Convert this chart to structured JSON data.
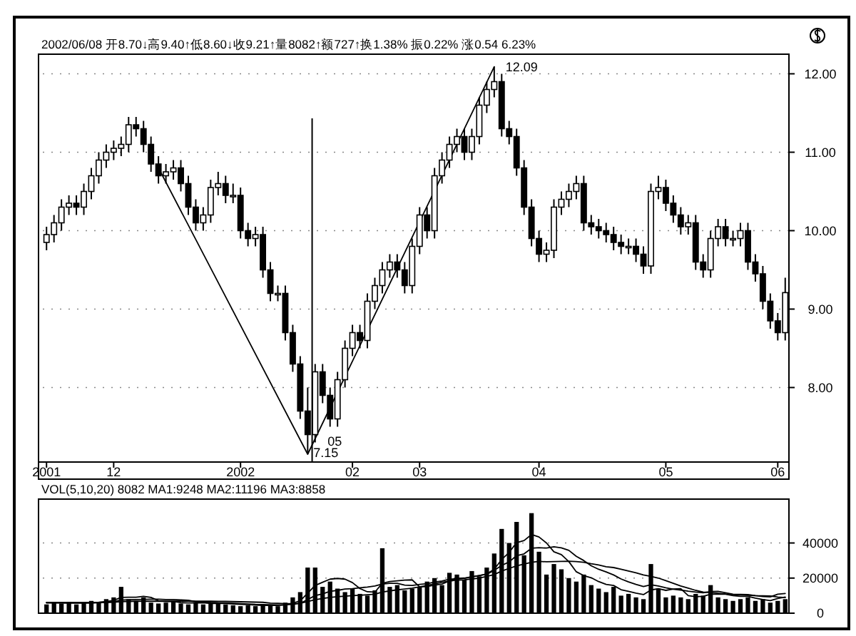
{
  "chart_data": [
    {
      "type": "candlestick",
      "subtitle": "2002/06/08 开8.70↓高9.40↑低8.60↓收9.21↑量8082↑额727↑换1.38% 振0.22% 涨0.54 6.23%",
      "categories": [
        "2001",
        null,
        null,
        null,
        null,
        null,
        null,
        null,
        null,
        "12",
        null,
        null,
        null,
        null,
        null,
        null,
        null,
        null,
        null,
        null,
        null,
        null,
        null,
        null,
        null,
        null,
        "2002",
        null,
        null,
        null,
        null,
        null,
        null,
        null,
        null,
        null,
        null,
        null,
        null,
        null,
        null,
        "02",
        null,
        null,
        null,
        null,
        null,
        null,
        null,
        null,
        "03",
        null,
        null,
        null,
        null,
        null,
        null,
        null,
        null,
        null,
        null,
        null,
        null,
        null,
        null,
        null,
        "04",
        null,
        null,
        null,
        null,
        null,
        null,
        null,
        null,
        null,
        null,
        null,
        null,
        null,
        null,
        null,
        null,
        "05",
        null,
        null,
        null,
        null,
        null,
        null,
        null,
        null,
        null,
        null,
        null,
        null,
        null,
        null,
        "06",
        null
      ],
      "ohlc": [
        [
          9.85,
          10.05,
          9.75,
          9.95
        ],
        [
          9.95,
          10.2,
          9.85,
          10.1
        ],
        [
          10.1,
          10.4,
          10.0,
          10.3
        ],
        [
          10.3,
          10.45,
          10.2,
          10.35
        ],
        [
          10.35,
          10.45,
          10.2,
          10.3
        ],
        [
          10.3,
          10.6,
          10.2,
          10.5
        ],
        [
          10.5,
          10.8,
          10.4,
          10.7
        ],
        [
          10.7,
          11.0,
          10.6,
          10.9
        ],
        [
          10.9,
          11.1,
          10.8,
          11.0
        ],
        [
          11.0,
          11.15,
          10.9,
          11.05
        ],
        [
          11.05,
          11.2,
          10.95,
          11.1
        ],
        [
          11.1,
          11.45,
          11.0,
          11.35
        ],
        [
          11.35,
          11.45,
          11.2,
          11.3
        ],
        [
          11.3,
          11.4,
          11.0,
          11.1
        ],
        [
          11.1,
          11.2,
          10.75,
          10.85
        ],
        [
          10.85,
          10.95,
          10.6,
          10.7
        ],
        [
          10.7,
          10.85,
          10.6,
          10.75
        ],
        [
          10.75,
          10.9,
          10.65,
          10.8
        ],
        [
          10.8,
          10.9,
          10.5,
          10.6
        ],
        [
          10.6,
          10.7,
          10.2,
          10.3
        ],
        [
          10.3,
          10.4,
          10.0,
          10.1
        ],
        [
          10.1,
          10.3,
          10.0,
          10.2
        ],
        [
          10.2,
          10.65,
          10.1,
          10.55
        ],
        [
          10.55,
          10.75,
          10.45,
          10.6
        ],
        [
          10.6,
          10.7,
          10.35,
          10.45
        ],
        [
          10.45,
          10.6,
          10.35,
          10.45
        ],
        [
          10.45,
          10.55,
          9.9,
          10.0
        ],
        [
          10.0,
          10.1,
          9.8,
          9.9
        ],
        [
          9.9,
          10.05,
          9.8,
          9.95
        ],
        [
          9.95,
          10.05,
          9.4,
          9.5
        ],
        [
          9.5,
          9.6,
          9.1,
          9.2
        ],
        [
          9.2,
          9.3,
          9.1,
          9.2
        ],
        [
          9.2,
          9.3,
          8.6,
          8.7
        ],
        [
          8.7,
          8.8,
          8.2,
          8.3
        ],
        [
          8.3,
          8.4,
          7.6,
          7.7
        ],
        [
          7.7,
          8.0,
          7.15,
          7.4
        ],
        [
          7.4,
          8.3,
          7.3,
          8.2
        ],
        [
          8.2,
          8.3,
          7.8,
          7.9
        ],
        [
          7.9,
          8.0,
          7.5,
          7.6
        ],
        [
          7.6,
          8.2,
          7.5,
          8.1
        ],
        [
          8.1,
          8.6,
          8.0,
          8.5
        ],
        [
          8.5,
          8.8,
          8.4,
          8.7
        ],
        [
          8.7,
          8.8,
          8.5,
          8.6
        ],
        [
          8.6,
          9.2,
          8.5,
          9.1
        ],
        [
          9.1,
          9.4,
          9.0,
          9.3
        ],
        [
          9.3,
          9.6,
          9.2,
          9.5
        ],
        [
          9.5,
          9.7,
          9.4,
          9.6
        ],
        [
          9.6,
          9.7,
          9.4,
          9.5
        ],
        [
          9.5,
          9.6,
          9.2,
          9.3
        ],
        [
          9.3,
          9.9,
          9.2,
          9.8
        ],
        [
          9.8,
          10.3,
          9.7,
          10.2
        ],
        [
          10.2,
          10.3,
          9.9,
          10.0
        ],
        [
          10.0,
          10.8,
          9.9,
          10.7
        ],
        [
          10.7,
          11.0,
          10.6,
          10.9
        ],
        [
          10.9,
          11.2,
          10.8,
          11.1
        ],
        [
          11.1,
          11.3,
          11.0,
          11.2
        ],
        [
          11.2,
          11.3,
          10.9,
          11.0
        ],
        [
          11.0,
          11.3,
          10.9,
          11.2
        ],
        [
          11.2,
          11.7,
          11.1,
          11.6
        ],
        [
          11.6,
          11.9,
          11.5,
          11.8
        ],
        [
          11.8,
          12.09,
          11.7,
          11.9
        ],
        [
          11.9,
          12.0,
          11.2,
          11.3
        ],
        [
          11.3,
          11.4,
          11.1,
          11.2
        ],
        [
          11.2,
          11.3,
          10.7,
          10.8
        ],
        [
          10.8,
          10.9,
          10.2,
          10.3
        ],
        [
          10.3,
          10.4,
          9.8,
          9.9
        ],
        [
          9.9,
          10.0,
          9.6,
          9.7
        ],
        [
          9.7,
          9.85,
          9.6,
          9.75
        ],
        [
          9.75,
          10.4,
          9.65,
          10.3
        ],
        [
          10.3,
          10.5,
          10.2,
          10.4
        ],
        [
          10.4,
          10.6,
          10.3,
          10.5
        ],
        [
          10.5,
          10.7,
          10.4,
          10.6
        ],
        [
          10.6,
          10.7,
          10.0,
          10.1
        ],
        [
          10.1,
          10.2,
          9.95,
          10.05
        ],
        [
          10.05,
          10.15,
          9.9,
          10.0
        ],
        [
          10.0,
          10.1,
          9.85,
          9.95
        ],
        [
          9.95,
          10.05,
          9.75,
          9.85
        ],
        [
          9.85,
          9.95,
          9.7,
          9.8
        ],
        [
          9.8,
          9.9,
          9.7,
          9.8
        ],
        [
          9.8,
          9.9,
          9.6,
          9.7
        ],
        [
          9.7,
          9.8,
          9.45,
          9.55
        ],
        [
          9.55,
          10.6,
          9.45,
          10.5
        ],
        [
          10.5,
          10.7,
          10.4,
          10.55
        ],
        [
          10.55,
          10.65,
          10.25,
          10.35
        ],
        [
          10.35,
          10.45,
          10.1,
          10.2
        ],
        [
          10.2,
          10.3,
          9.95,
          10.05
        ],
        [
          10.05,
          10.2,
          9.95,
          10.1
        ],
        [
          10.1,
          10.2,
          9.5,
          9.6
        ],
        [
          9.6,
          9.7,
          9.4,
          9.5
        ],
        [
          9.5,
          10.0,
          9.4,
          9.9
        ],
        [
          9.9,
          10.15,
          9.8,
          10.05
        ],
        [
          10.05,
          10.15,
          9.8,
          9.9
        ],
        [
          9.9,
          10.0,
          9.8,
          9.9
        ],
        [
          9.9,
          10.1,
          9.8,
          10.0
        ],
        [
          10.0,
          10.1,
          9.5,
          9.6
        ],
        [
          9.6,
          9.7,
          9.35,
          9.45
        ],
        [
          9.45,
          9.55,
          9.0,
          9.1
        ],
        [
          9.1,
          9.2,
          8.75,
          8.85
        ],
        [
          8.85,
          8.95,
          8.6,
          8.7
        ],
        [
          8.7,
          9.4,
          8.6,
          9.21
        ]
      ],
      "color": "#000000",
      "series": [
        {
          "type": "line",
          "color": "#000000",
          "values": [
            null,
            null,
            null,
            null,
            null,
            null,
            null,
            null,
            null,
            null,
            null,
            null,
            null,
            null,
            null,
            10.8,
            null,
            null,
            null,
            null,
            null,
            null,
            null,
            null,
            null,
            null,
            null,
            null,
            null,
            null,
            null,
            null,
            null,
            null,
            null,
            7.15,
            null,
            null,
            null,
            null,
            null,
            null,
            null,
            null,
            null,
            null,
            null,
            null,
            null,
            null,
            null,
            null,
            null,
            null,
            null,
            null,
            null,
            null,
            null,
            null,
            12.09,
            null,
            null,
            null,
            null,
            null,
            null,
            null,
            null,
            null,
            null,
            null,
            null,
            null,
            null,
            null,
            null,
            null,
            null,
            null,
            null,
            null,
            null,
            null,
            null,
            null,
            null,
            null,
            null,
            null,
            null,
            null,
            null,
            null,
            null,
            null,
            null,
            null,
            null,
            null
          ]
        }
      ],
      "ylim": [
        7.05,
        12.25
      ],
      "yticks": [
        {
          "value": 8,
          "label": "8.00"
        },
        {
          "value": 9,
          "label": "9.00"
        },
        {
          "value": 10,
          "label": "10.00"
        },
        {
          "value": 11,
          "label": "11.00"
        },
        {
          "value": 12,
          "label": "12.00"
        }
      ],
      "annotations": [
        "12.09",
        "7.15",
        "05"
      ],
      "grid": "y"
    },
    {
      "type": "bar",
      "subtitle": "VOL(5,10,20) 8082 MA1:9248 MA2:11196 MA3:8858",
      "categories": [
        null,
        null,
        null,
        null,
        null,
        null,
        null,
        null,
        null,
        null,
        null,
        null,
        null,
        null,
        null,
        null,
        null,
        null,
        null,
        null,
        null,
        null,
        null,
        null,
        null,
        null,
        null,
        null,
        null,
        null,
        null,
        null,
        null,
        null,
        null,
        null,
        null,
        null,
        null,
        null,
        null,
        null,
        null,
        null,
        null,
        null,
        null,
        null,
        null,
        null,
        null,
        null,
        null,
        null,
        null,
        null,
        null,
        null,
        null,
        null,
        null,
        null,
        null,
        null,
        null,
        null,
        null,
        null,
        null,
        null,
        null,
        null,
        null,
        null,
        null,
        null,
        null,
        null,
        null,
        null,
        null,
        null,
        null,
        null,
        null,
        null,
        null,
        null,
        null,
        null,
        null,
        null,
        null,
        null,
        null,
        null,
        null,
        null,
        null,
        null
      ],
      "series": [
        {
          "type": "bar",
          "color": "#000000",
          "values": [
            5000,
            6000,
            5500,
            6500,
            5000,
            6000,
            7000,
            6500,
            8000,
            9000,
            15000,
            8000,
            7000,
            9000,
            6000,
            5500,
            6000,
            7000,
            5500,
            5000,
            6000,
            5000,
            5500,
            6000,
            5000,
            4500,
            4000,
            4500,
            4000,
            5000,
            4500,
            4000,
            6000,
            9000,
            12000,
            26000,
            26000,
            15000,
            18000,
            14000,
            12000,
            14000,
            11000,
            10000,
            13000,
            37000,
            15000,
            16000,
            13000,
            14000,
            15000,
            18000,
            20000,
            16000,
            23000,
            22000,
            19000,
            24000,
            21000,
            26000,
            34000,
            48000,
            40000,
            52000,
            33000,
            57000,
            35000,
            22000,
            28000,
            25000,
            20000,
            18000,
            22000,
            16000,
            14000,
            12000,
            15000,
            10000,
            11000,
            9000,
            8000,
            28000,
            14000,
            9000,
            10000,
            9000,
            8000,
            11000,
            10000,
            16000,
            9000,
            8000,
            7000,
            8000,
            9000,
            7000,
            8000,
            6000,
            7000,
            8000
          ]
        },
        {
          "type": "line",
          "color": "#000000",
          "values": [
            6000,
            6000,
            5800,
            5900,
            5800,
            5800,
            6000,
            6200,
            6600,
            7300,
            9000,
            9100,
            9100,
            9600,
            9000,
            7100,
            6700,
            6700,
            6000,
            5800,
            5900,
            5900,
            5500,
            5500,
            5500,
            5200,
            5000,
            4900,
            4600,
            4400,
            4400,
            4400,
            4700,
            5600,
            7100,
            11400,
            15800,
            17600,
            19400,
            19800,
            19400,
            17400,
            14000,
            12200,
            12000,
            17000,
            18000,
            18400,
            18800,
            19000,
            15000,
            15200,
            16000,
            16600,
            18400,
            19800,
            20000,
            20800,
            21400,
            22400,
            25000,
            30600,
            34600,
            40200,
            41400,
            44800,
            43400,
            40000,
            35000,
            33400,
            29400,
            23600,
            21400,
            20200,
            18000,
            16400,
            15800,
            13400,
            12400,
            11400,
            10600,
            13200,
            14000,
            13000,
            13800,
            14000,
            10000,
            9400,
            9600,
            10800,
            10800,
            10800,
            10000,
            9600,
            9600,
            8600,
            7800,
            7200,
            8400,
            9200
          ]
        },
        {
          "type": "line",
          "color": "#000000",
          "values": [
            6000,
            6000,
            6000,
            5900,
            5900,
            5900,
            5900,
            6000,
            6200,
            6500,
            7500,
            7700,
            7800,
            7900,
            8000,
            8000,
            7800,
            7800,
            7600,
            7400,
            6500,
            6400,
            6100,
            5900,
            5800,
            5600,
            5400,
            5200,
            5000,
            4900,
            4800,
            4700,
            4800,
            5000,
            5600,
            7800,
            10000,
            11000,
            12400,
            13000,
            13800,
            14000,
            14500,
            14900,
            15500,
            16600,
            17000,
            17000,
            16000,
            15800,
            16400,
            16800,
            17700,
            18300,
            19300,
            19600,
            19900,
            20700,
            21500,
            22200,
            24400,
            27200,
            29200,
            32800,
            33800,
            37000,
            37300,
            37100,
            37800,
            37200,
            35800,
            32400,
            30000,
            27000,
            25000,
            23500,
            21800,
            19500,
            17800,
            16400,
            15200,
            16200,
            15500,
            14500,
            13700,
            13200,
            12500,
            12000,
            11600,
            12300,
            12400,
            11600,
            10800,
            10700,
            10600,
            10000,
            9500,
            9300,
            10800,
            11200
          ]
        },
        {
          "type": "line",
          "color": "#000000",
          "values": [
            6000,
            6000,
            6000,
            6000,
            6000,
            6000,
            6000,
            6100,
            6200,
            6300,
            6600,
            6700,
            6800,
            6800,
            6800,
            6800,
            6800,
            6800,
            6900,
            6900,
            6800,
            6800,
            6800,
            6700,
            6700,
            6600,
            6500,
            6400,
            6300,
            6200,
            5700,
            5600,
            5400,
            5400,
            5600,
            6700,
            7700,
            8400,
            9000,
            9400,
            9700,
            10000,
            10200,
            10500,
            10800,
            12000,
            12700,
            13300,
            13800,
            14300,
            15000,
            15800,
            16700,
            17600,
            18200,
            18900,
            19000,
            19500,
            20000,
            21000,
            22000,
            24000,
            25500,
            27000,
            28000,
            29000,
            29500,
            29300,
            29400,
            29500,
            29600,
            29400,
            29000,
            28200,
            27500,
            26500,
            26000,
            25000,
            24000,
            23000,
            21800,
            21000,
            20000,
            18500,
            17000,
            15500,
            14300,
            13000,
            12000,
            11700,
            11300,
            10900,
            10600,
            10400,
            10200,
            10000,
            9900,
            9800,
            9200,
            8900
          ]
        }
      ],
      "ylim": [
        0,
        65000
      ],
      "yticks": [
        0,
        20000,
        40000
      ],
      "tick_labels": "y",
      "grid": "y"
    }
  ]
}
